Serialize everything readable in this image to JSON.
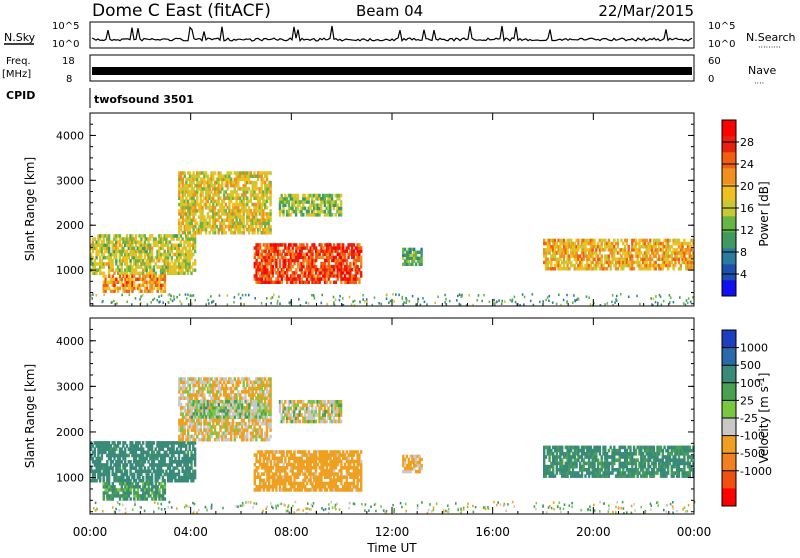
{
  "header": {
    "station": "Dome C East (fitACF)",
    "beam": "Beam 04",
    "date": "22/Mar/2015"
  },
  "noise_panel": {
    "left_label": "N.Sky",
    "right_label": "N.Search",
    "right_label_dots": "·········",
    "ticks": [
      "10^5",
      "10^0"
    ]
  },
  "freq_panel": {
    "left_label_line1": "Freq.",
    "left_label_line2": "[MHz]",
    "left_ticks": [
      "18",
      "8"
    ],
    "right_ticks": [
      "60",
      "0"
    ],
    "right_label": "Nave",
    "right_label_dots": "····"
  },
  "cpid": {
    "label": "CPID",
    "value": "twofsound 3501"
  },
  "colors": {
    "power_scale": [
      "#1010f0",
      "#1e4fae",
      "#2b7aa0",
      "#3f9960",
      "#66b545",
      "#c8c830",
      "#f0c020",
      "#f09020",
      "#f06010",
      "#e82010",
      "#ff0000"
    ],
    "velocity_scale": [
      "#1d3fbf",
      "#2b6aa8",
      "#3a8a7a",
      "#48a050",
      "#7ac840",
      "#c8c8c8",
      "#f0a020",
      "#f08020",
      "#f05010",
      "#ff0000"
    ]
  },
  "chart_data": [
    {
      "type": "heatmap",
      "title": "",
      "quantity": "Power",
      "xlabel": "",
      "ylabel": "Slant Range [km]",
      "xlim": [
        "00:00",
        "24:00"
      ],
      "ylim": [
        200,
        4500
      ],
      "y_ticks": [
        1000,
        2000,
        3000,
        4000
      ],
      "colorbar": {
        "label": "Power [dB]",
        "range": [
          0,
          32
        ],
        "ticks": [
          4,
          8,
          12,
          16,
          20,
          24,
          28
        ]
      },
      "echo_regions": [
        {
          "t_start": 0.0,
          "t_end": 4.2,
          "r_start": 900,
          "r_end": 1800,
          "value": 16
        },
        {
          "t_start": 0.5,
          "t_end": 3.0,
          "r_start": 500,
          "r_end": 900,
          "value": 22
        },
        {
          "t_start": 3.5,
          "t_end": 7.2,
          "r_start": 1800,
          "r_end": 3200,
          "value": 18
        },
        {
          "t_start": 6.5,
          "t_end": 10.8,
          "r_start": 700,
          "r_end": 1600,
          "value": 26
        },
        {
          "t_start": 7.5,
          "t_end": 10.0,
          "r_start": 2200,
          "r_end": 2700,
          "value": 14
        },
        {
          "t_start": 12.4,
          "t_end": 13.2,
          "r_start": 1100,
          "r_end": 1500,
          "value": 12
        },
        {
          "t_start": 18.0,
          "t_end": 24.0,
          "r_start": 1000,
          "r_end": 1700,
          "value": 20
        }
      ]
    },
    {
      "type": "heatmap",
      "title": "",
      "quantity": "Velocity",
      "xlabel": "Time UT",
      "ylabel": "Slant Range [km]",
      "xlim": [
        "00:00",
        "24:00"
      ],
      "x_ticks": [
        "00:00",
        "04:00",
        "08:00",
        "12:00",
        "16:00",
        "20:00",
        "00:00"
      ],
      "ylim": [
        200,
        4500
      ],
      "y_ticks": [
        1000,
        2000,
        3000,
        4000
      ],
      "colorbar": {
        "label": "Velocity [m s^-1]",
        "ticks": [
          "1000",
          "500",
          "100",
          "25",
          "-25",
          "-100",
          "-500",
          "-1000"
        ]
      },
      "echo_regions": [
        {
          "t_start": 0.0,
          "t_end": 4.2,
          "r_start": 900,
          "r_end": 1800,
          "value": 200
        },
        {
          "t_start": 0.5,
          "t_end": 3.0,
          "r_start": 500,
          "r_end": 900,
          "value": 100
        },
        {
          "t_start": 3.5,
          "t_end": 7.2,
          "r_start": 1800,
          "r_end": 3200,
          "value": -100
        },
        {
          "t_start": 4.0,
          "t_end": 7.0,
          "r_start": 2300,
          "r_end": 2700,
          "value": 0
        },
        {
          "t_start": 6.5,
          "t_end": 10.8,
          "r_start": 700,
          "r_end": 1600,
          "value": -200
        },
        {
          "t_start": 7.5,
          "t_end": 10.0,
          "r_start": 2200,
          "r_end": 2700,
          "value": -50
        },
        {
          "t_start": 12.4,
          "t_end": 13.2,
          "r_start": 1100,
          "r_end": 1500,
          "value": -150
        },
        {
          "t_start": 18.0,
          "t_end": 24.0,
          "r_start": 1000,
          "r_end": 1700,
          "value": 150
        }
      ]
    }
  ]
}
